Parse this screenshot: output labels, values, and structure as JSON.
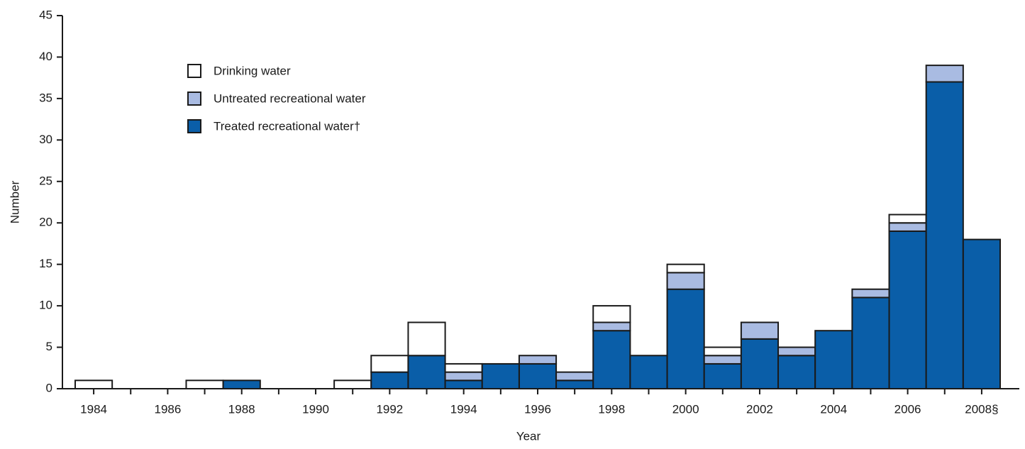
{
  "chart_data": {
    "type": "stacked-bar",
    "x_label": "Year",
    "y_label": "Number",
    "categories": [
      "1984",
      null,
      "1986",
      null,
      "1988",
      null,
      "1990",
      null,
      "1992",
      null,
      "1994",
      null,
      "1996",
      null,
      "1998",
      null,
      "2000",
      null,
      "2002",
      null,
      "2004",
      null,
      "2006",
      null,
      "2008§"
    ],
    "series": [
      {
        "name": "Treated recreational water†",
        "color": "#0a5ea8",
        "values": [
          0,
          0,
          0,
          0,
          1,
          0,
          0,
          0,
          2,
          4,
          1,
          3,
          3,
          1,
          7,
          4,
          12,
          3,
          6,
          4,
          7,
          11,
          19,
          37,
          18
        ]
      },
      {
        "name": "Untreated recreational water",
        "color": "#a9bbe2",
        "values": [
          0,
          0,
          0,
          0,
          0,
          0,
          0,
          0,
          0,
          0,
          1,
          0,
          1,
          1,
          1,
          0,
          2,
          1,
          2,
          1,
          0,
          1,
          1,
          2,
          0
        ]
      },
      {
        "name": "Drinking water",
        "color": "#ffffff",
        "values": [
          1,
          0,
          0,
          1,
          0,
          0,
          0,
          1,
          2,
          4,
          1,
          0,
          0,
          0,
          2,
          0,
          1,
          1,
          0,
          0,
          0,
          0,
          1,
          0,
          0
        ]
      }
    ],
    "ylim": [
      0,
      45
    ],
    "yticks": [
      0,
      5,
      10,
      15,
      20,
      25,
      30,
      35,
      40,
      45
    ],
    "legend": "upper-left"
  }
}
